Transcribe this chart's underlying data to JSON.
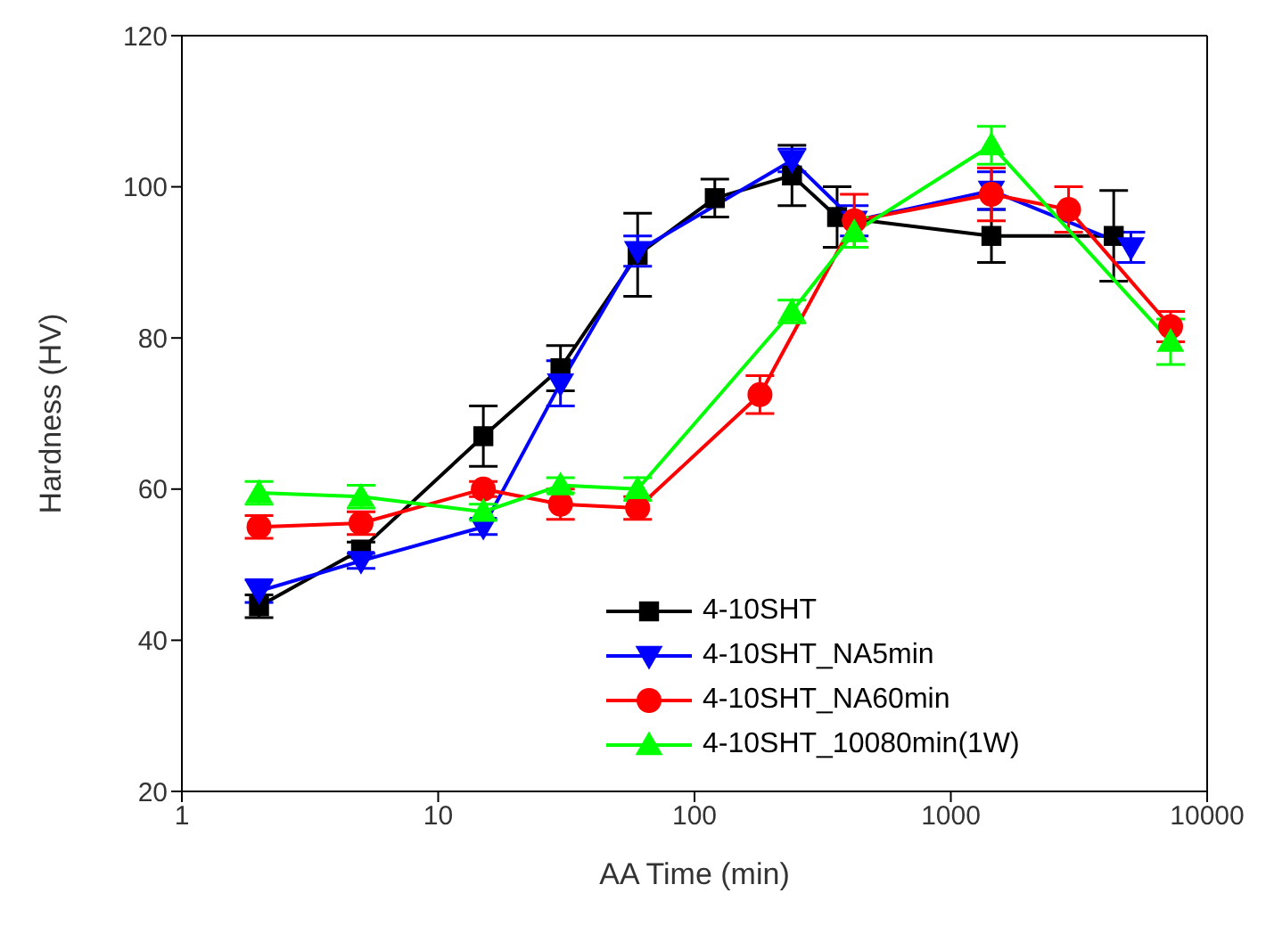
{
  "chart_data": {
    "type": "line",
    "xlabel": "AA Time (min)",
    "ylabel": "Hardness (HV)",
    "log": "x",
    "xlim": [
      1,
      10000
    ],
    "xticks": [
      1,
      10,
      100,
      1000,
      10000
    ],
    "ylim": [
      20,
      120
    ],
    "yticks": [
      20,
      40,
      60,
      80,
      100,
      120
    ],
    "grid": false,
    "legend": "bottom right",
    "line_style": "solid",
    "series": [
      {
        "name": "4-10SHT",
        "color": "#000000",
        "marker": "square",
        "x": [
          2,
          5,
          15,
          30,
          60,
          120,
          240,
          360,
          1440,
          4320
        ],
        "values": [
          44.5,
          52,
          67,
          76,
          91,
          98.5,
          101.5,
          96,
          93.5,
          93.5
        ],
        "errors": [
          1.5,
          1,
          4,
          3,
          5.5,
          2.5,
          4,
          4,
          3.5,
          6
        ]
      },
      {
        "name": "4-10SHT_NA5min",
        "color": "#0000ff",
        "marker": "triangle_down",
        "x": [
          2,
          5,
          15,
          30,
          60,
          240,
          420,
          1440,
          5040
        ],
        "values": [
          46.5,
          50.5,
          55,
          74,
          91.5,
          103.5,
          95.5,
          99.5,
          92
        ],
        "errors": [
          1.5,
          1,
          1,
          3,
          2,
          1.5,
          2,
          2.5,
          2
        ]
      },
      {
        "name": "4-10SHT_NA60min",
        "color": "#ff0000",
        "marker": "circle",
        "x": [
          2,
          5,
          15,
          30,
          60,
          180,
          420,
          1440,
          2880,
          7200
        ],
        "values": [
          55,
          55.5,
          60,
          58,
          57.5,
          72.5,
          95.5,
          99,
          97,
          81.5
        ],
        "errors": [
          1.5,
          1.5,
          1,
          2,
          1.5,
          2.5,
          3.5,
          3.5,
          3,
          2
        ]
      },
      {
        "name": "4-10SHT_10080min(1W)",
        "color": "#00ff00",
        "marker": "triangle",
        "x": [
          2,
          5,
          15,
          30,
          60,
          240,
          420,
          1440,
          7200
        ],
        "values": [
          59.5,
          59,
          57,
          60.5,
          60,
          83.5,
          94,
          105.5,
          79.5
        ],
        "errors": [
          1.5,
          1.5,
          1,
          1,
          1.5,
          1.5,
          2,
          2.5,
          3
        ]
      }
    ]
  }
}
